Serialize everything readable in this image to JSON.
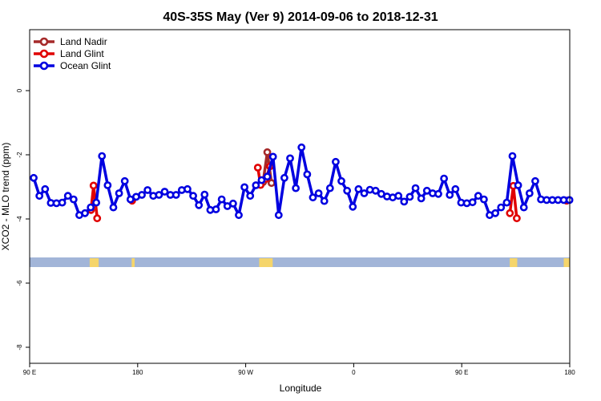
{
  "chart_data": {
    "type": "line",
    "title": "40S-35S May (Ver 9)   2014-09-06 to 2018-12-31",
    "xlabel": "Longitude",
    "ylabel": "XCO2 - MLO trend (ppm)",
    "xlim": [
      90,
      450
    ],
    "ylim": [
      -8.5,
      1.9
    ],
    "x_ticks": [
      {
        "value": 90,
        "label": "90 E"
      },
      {
        "value": 162,
        "label": "180"
      },
      {
        "value": 234,
        "label": "90 W"
      },
      {
        "value": 306,
        "label": "0"
      },
      {
        "value": 378,
        "label": "90 E"
      },
      {
        "value": 450,
        "label": "180"
      }
    ],
    "y_ticks": [
      {
        "value": 0,
        "label": "0"
      },
      {
        "value": -2,
        "label": "-2"
      },
      {
        "value": -4,
        "label": "-4"
      },
      {
        "value": -6,
        "label": "-6"
      },
      {
        "value": -8,
        "label": "-8"
      }
    ],
    "grid": false,
    "legend_position": "top-left",
    "background_band": {
      "y_range": [
        -5.2,
        -5.5
      ],
      "color": "#a2b5d8",
      "land_color": "#f5d56b"
    },
    "series": [
      {
        "name": "Land Nadir",
        "color": "#a52a2a",
        "x": [
          245.6,
          248.4,
          251.2
        ],
        "y": [
          -2.85,
          -1.92,
          -2.88
        ]
      },
      {
        "name": "Land Glint",
        "color": "#e00000",
        "x": [
          130.9,
          132.6,
          135.0,
          158.3,
          242.1,
          243.9,
          247.5,
          250.2,
          410.1,
          412.4,
          414.7,
          447.9
        ],
        "y": [
          -3.72,
          -2.96,
          -3.98,
          -3.43,
          -2.4,
          -2.94,
          -2.75,
          -2.36,
          -3.82,
          -2.97,
          -3.98,
          -3.43
        ]
      },
      {
        "name": "Ocean Glint",
        "color": "#0000e0",
        "x": [
          92.7,
          96.5,
          100.3,
          104.1,
          107.9,
          111.7,
          115.5,
          119.3,
          123.1,
          126.9,
          130.7,
          134.4,
          138.2,
          142.0,
          145.8,
          149.6,
          153.4,
          157.2,
          161.0,
          164.8,
          168.6,
          172.4,
          176.2,
          180.0,
          183.8,
          187.6,
          191.4,
          195.2,
          199.0,
          202.8,
          206.6,
          210.4,
          214.2,
          218.0,
          221.8,
          225.6,
          229.4,
          233.2,
          237.0,
          240.8,
          244.6,
          248.4,
          252.2,
          256.0,
          259.8,
          263.6,
          267.4,
          271.2,
          275.0,
          278.8,
          282.6,
          286.4,
          290.2,
          294.0,
          297.8,
          301.6,
          305.4,
          309.2,
          313.0,
          316.8,
          320.6,
          324.4,
          328.2,
          332.0,
          335.8,
          339.6,
          343.4,
          347.2,
          351.0,
          354.8,
          358.6,
          362.4,
          366.2,
          370.0,
          373.8,
          377.6,
          381.4,
          385.2,
          389.0,
          392.8,
          396.6,
          400.4,
          404.2,
          408.0,
          411.8,
          415.6,
          419.4,
          423.2,
          427.0,
          430.8,
          434.6,
          438.4,
          442.2,
          446.0,
          449.8
        ],
        "y": [
          -2.72,
          -3.28,
          -3.07,
          -3.5,
          -3.51,
          -3.49,
          -3.28,
          -3.39,
          -3.88,
          -3.82,
          -3.64,
          -3.49,
          -2.04,
          -2.95,
          -3.64,
          -3.2,
          -2.82,
          -3.39,
          -3.31,
          -3.25,
          -3.1,
          -3.28,
          -3.25,
          -3.15,
          -3.25,
          -3.25,
          -3.1,
          -3.07,
          -3.28,
          -3.57,
          -3.24,
          -3.72,
          -3.7,
          -3.39,
          -3.6,
          -3.52,
          -3.88,
          -3.01,
          -3.28,
          -2.95,
          -2.79,
          -2.68,
          -2.06,
          -3.88,
          -2.72,
          -2.11,
          -3.04,
          -1.77,
          -2.61,
          -3.33,
          -3.2,
          -3.44,
          -3.04,
          -2.22,
          -2.82,
          -3.12,
          -3.62,
          -3.07,
          -3.2,
          -3.09,
          -3.12,
          -3.22,
          -3.3,
          -3.33,
          -3.28,
          -3.46,
          -3.31,
          -3.04,
          -3.36,
          -3.12,
          -3.2,
          -3.22,
          -2.74,
          -3.25,
          -3.07,
          -3.49,
          -3.51,
          -3.48,
          -3.28,
          -3.39,
          -3.88,
          -3.82,
          -3.64,
          -3.49,
          -2.04,
          -2.95,
          -3.64,
          -3.2,
          -2.82,
          -3.39,
          -3.41,
          -3.41,
          -3.41,
          -3.41,
          -3.41
        ]
      }
    ]
  }
}
